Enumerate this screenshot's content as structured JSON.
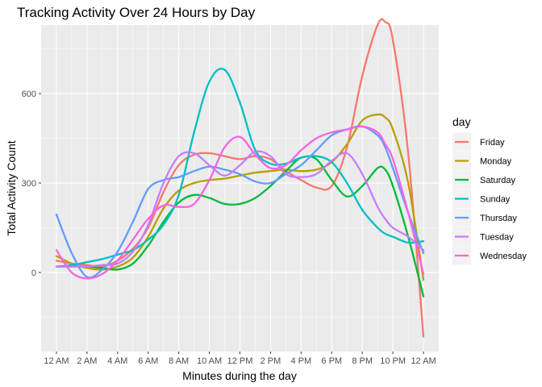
{
  "chart_data": {
    "type": "line",
    "title": "Tracking Activity Over 24 Hours by Day",
    "xlabel": "Minutes during the day",
    "ylabel": "Total Activity Count",
    "xlim": [
      -60,
      1500
    ],
    "ylim": [
      -265,
      830
    ],
    "x_ticks": [
      {
        "value": 0,
        "label": "12 AM"
      },
      {
        "value": 120,
        "label": "2 AM"
      },
      {
        "value": 240,
        "label": "4 AM"
      },
      {
        "value": 360,
        "label": "6 AM"
      },
      {
        "value": 480,
        "label": "8 AM"
      },
      {
        "value": 600,
        "label": "10 AM"
      },
      {
        "value": 720,
        "label": "12 PM"
      },
      {
        "value": 840,
        "label": "2 PM"
      },
      {
        "value": 960,
        "label": "4 PM"
      },
      {
        "value": 1080,
        "label": "6 PM"
      },
      {
        "value": 1200,
        "label": "8 PM"
      },
      {
        "value": 1320,
        "label": "10 PM"
      },
      {
        "value": 1440,
        "label": "12 AM"
      }
    ],
    "y_ticks": [
      {
        "value": 0,
        "label": "0"
      },
      {
        "value": 300,
        "label": "300"
      },
      {
        "value": 600,
        "label": "600"
      }
    ],
    "grid": true,
    "legend": {
      "title": "day",
      "position": "right"
    },
    "x": [
      0,
      60,
      120,
      180,
      240,
      300,
      360,
      420,
      480,
      540,
      600,
      660,
      720,
      780,
      840,
      900,
      960,
      1020,
      1080,
      1140,
      1200,
      1260,
      1290,
      1320,
      1380,
      1440
    ],
    "series": [
      {
        "name": "Friday",
        "color": "#F8766D",
        "values": [
          40,
          30,
          25,
          20,
          40,
          80,
          150,
          270,
          360,
          395,
          400,
          390,
          380,
          390,
          380,
          340,
          310,
          285,
          290,
          420,
          660,
          830,
          840,
          780,
          400,
          -215
        ]
      },
      {
        "name": "Monday",
        "color": "#B79F00",
        "values": [
          55,
          30,
          15,
          10,
          20,
          50,
          120,
          215,
          275,
          300,
          310,
          315,
          325,
          335,
          340,
          345,
          340,
          345,
          370,
          430,
          510,
          530,
          520,
          480,
          300,
          -25
        ]
      },
      {
        "name": "Saturday",
        "color": "#00BA38",
        "values": [
          20,
          20,
          20,
          15,
          10,
          30,
          90,
          170,
          235,
          260,
          250,
          230,
          230,
          250,
          290,
          340,
          385,
          380,
          310,
          255,
          290,
          350,
          345,
          290,
          120,
          -80
        ]
      },
      {
        "name": "Sunday",
        "color": "#00BFC4",
        "values": [
          20,
          25,
          35,
          45,
          60,
          75,
          110,
          160,
          260,
          470,
          640,
          680,
          570,
          410,
          365,
          365,
          385,
          390,
          370,
          300,
          210,
          150,
          130,
          120,
          100,
          105
        ]
      },
      {
        "name": "Thursday",
        "color": "#619CFF",
        "values": [
          195,
          65,
          -15,
          10,
          70,
          170,
          280,
          310,
          320,
          340,
          355,
          345,
          330,
          305,
          300,
          330,
          360,
          410,
          460,
          480,
          490,
          460,
          420,
          350,
          200,
          65
        ]
      },
      {
        "name": "Tuesday",
        "color": "#C77CFF",
        "values": [
          20,
          20,
          20,
          25,
          30,
          70,
          160,
          300,
          390,
          400,
          360,
          325,
          360,
          405,
          390,
          330,
          320,
          330,
          375,
          400,
          330,
          220,
          180,
          150,
          120,
          75
        ]
      },
      {
        "name": "Wednesday",
        "color": "#F564E3",
        "values": [
          75,
          0,
          -20,
          -5,
          40,
          110,
          180,
          225,
          220,
          230,
          310,
          420,
          455,
          395,
          350,
          360,
          410,
          450,
          470,
          480,
          490,
          470,
          430,
          380,
          200,
          -5
        ]
      }
    ]
  }
}
